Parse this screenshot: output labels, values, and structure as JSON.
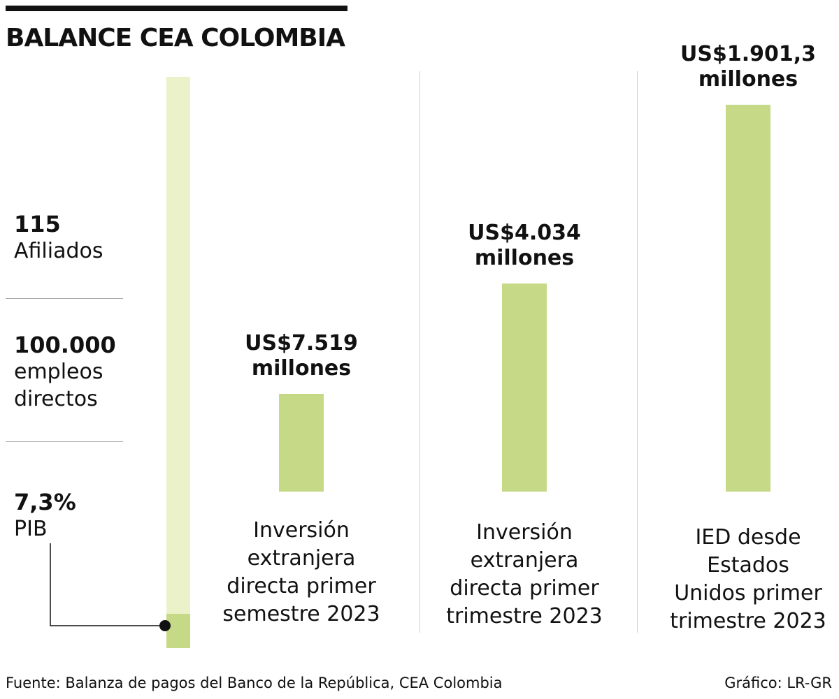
{
  "title": "BALANCE CEA COLOMBIA",
  "stats": [
    {
      "value": "115",
      "label_lines": [
        "Afiliados"
      ]
    },
    {
      "value": "100.000",
      "label_lines": [
        "empleos",
        "directos"
      ]
    },
    {
      "value": "7,3%",
      "label_lines": [
        "PIB"
      ]
    }
  ],
  "colors": {
    "bar": "#c5d986",
    "bar_light": "#ebf1c8",
    "text": "#111111",
    "rule": "#111111"
  },
  "chart_data": {
    "type": "bar",
    "title": "BALANCE CEA COLOMBIA",
    "unit": "millones de US$",
    "categories": [
      "Inversión extranjera directa primer semestre 2023",
      "Inversión extranjera directa primer trimestre 2023",
      "IED desde Estados Unidos primer trimestre 2023"
    ],
    "values": [
      7519,
      4034,
      1901.3
    ],
    "value_labels": [
      [
        "US$7.519",
        "millones"
      ],
      [
        "US$4.034",
        "millones"
      ],
      [
        "US$1.901,3",
        "millones"
      ]
    ],
    "caption_lines": [
      [
        "Inversión",
        "extranjera",
        "directa primer",
        "semestre 2023"
      ],
      [
        "Inversión",
        "extranjera",
        "directa primer",
        "trimestre 2023"
      ],
      [
        "IED desde",
        "Estados",
        "Unidos primer",
        "trimestre 2023"
      ]
    ],
    "pib_share_percent": 7.3
  },
  "footer": {
    "source": "Fuente: Balanza de pagos del Banco de la República, CEA Colombia",
    "credit": "Gráfico: LR-GR"
  }
}
